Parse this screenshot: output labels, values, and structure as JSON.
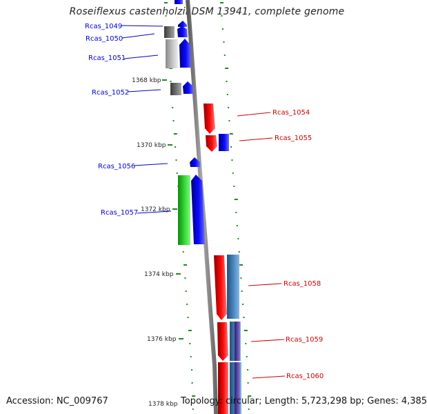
{
  "title": "Roseiflexus castenholzii DSM 13941, complete genome",
  "footer": {
    "accession": "Accession: NC_009767",
    "summary": "Topology: circular; Length: 5,723,298 bp; Genes: 4,385"
  },
  "colors": {
    "backbone": "#8a8a8a",
    "tick": "#1a8a1a",
    "label_blue": "#0000cc",
    "label_red": "#cc0000",
    "gene_blue": "#0000ee",
    "gene_red": "#ee0000",
    "gene_gray": "#777777",
    "gene_lightgray": "#b5b5b5",
    "gene_green": "#33cc33",
    "gene_steel": "#4a86bf",
    "gene_purple": "#55449a"
  },
  "kbp_labels": [
    "1368 kbp",
    "1370 kbp",
    "1372 kbp",
    "1374 kbp",
    "1376 kbp",
    "1378 kbp"
  ],
  "gene_labels": [
    "Rcas_1049",
    "Rcas_1050",
    "Rcas_1051",
    "Rcas_1052",
    "Rcas_1054",
    "Rcas_1055",
    "Rcas_1056",
    "Rcas_1057",
    "Rcas_1058",
    "Rcas_1059",
    "Rcas_1060"
  ]
}
